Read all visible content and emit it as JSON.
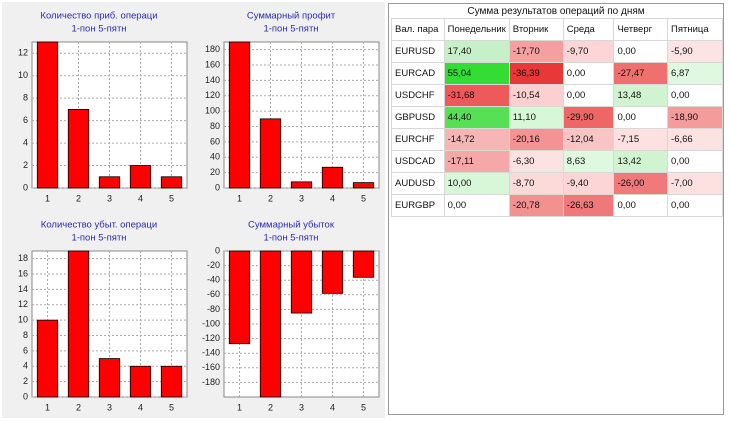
{
  "chart_data": [
    {
      "type": "bar",
      "title": "Количество приб. операци",
      "subtitle": "1-пон 5-пятн",
      "categories": [
        "1",
        "2",
        "3",
        "4",
        "5"
      ],
      "values": [
        13,
        7,
        1,
        2,
        1
      ],
      "color": "#ff0000",
      "ylim": [
        0,
        13
      ],
      "yticks": [
        0,
        2,
        4,
        6,
        8,
        10,
        12
      ],
      "grid": true
    },
    {
      "type": "bar",
      "title": "Суммарный профит",
      "subtitle": "1-пон 5-пятн",
      "categories": [
        "1",
        "2",
        "3",
        "4",
        "5"
      ],
      "values": [
        190,
        90,
        8,
        27,
        7
      ],
      "color": "#ff0000",
      "ylim": [
        0,
        190
      ],
      "yticks": [
        0,
        20,
        40,
        60,
        80,
        100,
        120,
        140,
        160,
        180
      ],
      "grid": true
    },
    {
      "type": "bar",
      "title": "Количество убыт. операци",
      "subtitle": "1-пон 5-пятн",
      "categories": [
        "1",
        "2",
        "3",
        "4",
        "5"
      ],
      "values": [
        10,
        19,
        5,
        4,
        4
      ],
      "color": "#ff0000",
      "ylim": [
        0,
        19
      ],
      "yticks": [
        0,
        2,
        4,
        6,
        8,
        10,
        12,
        14,
        16,
        18
      ],
      "grid": true
    },
    {
      "type": "bar",
      "title": "Суммарный убыток",
      "subtitle": "1-пон 5-пятн",
      "categories": [
        "1",
        "2",
        "3",
        "4",
        "5"
      ],
      "values": [
        -127,
        -200,
        -85,
        -58,
        -36
      ],
      "color": "#ff0000",
      "ylim": [
        -200,
        0
      ],
      "yticks": [
        0,
        -20,
        -40,
        -60,
        -80,
        -100,
        -120,
        -140,
        -160,
        -180
      ],
      "grid": true
    }
  ],
  "table": {
    "title": "Сумма результатов операций  по дням",
    "header": [
      "Вал. пара",
      "Понедельник",
      "Вторник",
      "Среда",
      "Четверг",
      "Пятница"
    ],
    "rows": [
      [
        "EURUSD",
        "17,40",
        "-17,70",
        "-9,70",
        "0,00",
        "-5,90"
      ],
      [
        "EURCAD",
        "55,04",
        "-36,39",
        "0,00",
        "-27,47",
        "6,87"
      ],
      [
        "USDCHF",
        "-31,68",
        "-10,54",
        "0,00",
        "13,48",
        "0,00"
      ],
      [
        "GBPUSD",
        "44,40",
        "11,10",
        "-29,90",
        "0,00",
        "-18,90"
      ],
      [
        "EURCHF",
        "-14,72",
        "-20,16",
        "-12,04",
        "-7,15",
        "-6,66"
      ],
      [
        "USDCAD",
        "-17,11",
        "-6,30",
        "8,63",
        "13,42",
        "0,00"
      ],
      [
        "AUDUSD",
        "10,00",
        "-8,70",
        "-9,40",
        "-26,00",
        "-7,00"
      ],
      [
        "EURGBP",
        "0,00",
        "-20,78",
        "-26,63",
        "0,00",
        "0,00"
      ]
    ],
    "cell_colors": [
      [
        "#ffffff",
        "#c8f0c8",
        "#f4a0a0",
        "#fcd6d6",
        "#ffffff",
        "#fde4e4"
      ],
      [
        "#ffffff",
        "#33dd33",
        "#e83838",
        "#ffffff",
        "#f07070",
        "#e0f8e0"
      ],
      [
        "#ffffff",
        "#ee5a5a",
        "#fcd0d0",
        "#ffffff",
        "#d0f4d0",
        "#ffffff"
      ],
      [
        "#ffffff",
        "#55e055",
        "#d8f6d8",
        "#ef6666",
        "#ffffff",
        "#f49c9c"
      ],
      [
        "#ffffff",
        "#f6b6b6",
        "#f39393",
        "#f8c4c4",
        "#fde0e0",
        "#fde2e2"
      ],
      [
        "#ffffff",
        "#f4a8a8",
        "#fde2e2",
        "#e0f8e0",
        "#d0f4d0",
        "#ffffff"
      ],
      [
        "#ffffff",
        "#d8f6d8",
        "#fcdada",
        "#fcd6d6",
        "#f07a7a",
        "#fde0e0"
      ],
      [
        "#ffffff",
        "#ffffff",
        "#f39090",
        "#f07878",
        "#ffffff",
        "#ffffff"
      ]
    ]
  }
}
